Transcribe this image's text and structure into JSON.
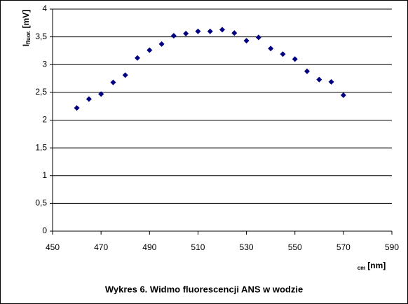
{
  "chart_data": {
    "type": "scatter",
    "title": "Wykres 6. Widmo fluorescencji ANS w wodzie",
    "xlabel": {
      "sub": "cm",
      "unit": "[nm]"
    },
    "ylabel": {
      "main": "I",
      "sub": "fluor.",
      "unit": "[mV]"
    },
    "x": [
      460,
      465,
      470,
      475,
      480,
      485,
      490,
      495,
      500,
      505,
      510,
      515,
      520,
      525,
      530,
      535,
      540,
      545,
      550,
      555,
      560,
      565,
      570
    ],
    "series": [
      {
        "name": null,
        "color": "#000080",
        "values": [
          2.22,
          2.38,
          2.47,
          2.68,
          2.81,
          3.12,
          3.26,
          3.37,
          3.52,
          3.56,
          3.6,
          3.6,
          3.63,
          3.57,
          3.43,
          3.49,
          3.29,
          3.19,
          3.1,
          2.88,
          2.73,
          2.69,
          2.45
        ]
      }
    ],
    "xlim": [
      450,
      590
    ],
    "xticks": [
      450,
      470,
      490,
      510,
      530,
      550,
      570,
      590
    ],
    "ylim": [
      0,
      4
    ],
    "yticks": [
      0,
      {
        "value": 0.5,
        "label": "0,5"
      },
      1,
      {
        "value": 1.5,
        "label": "1,5"
      },
      2,
      {
        "value": 2.5,
        "label": "2,5"
      },
      3,
      {
        "value": 3.5,
        "label": "3,5"
      },
      4
    ],
    "grid": true
  }
}
